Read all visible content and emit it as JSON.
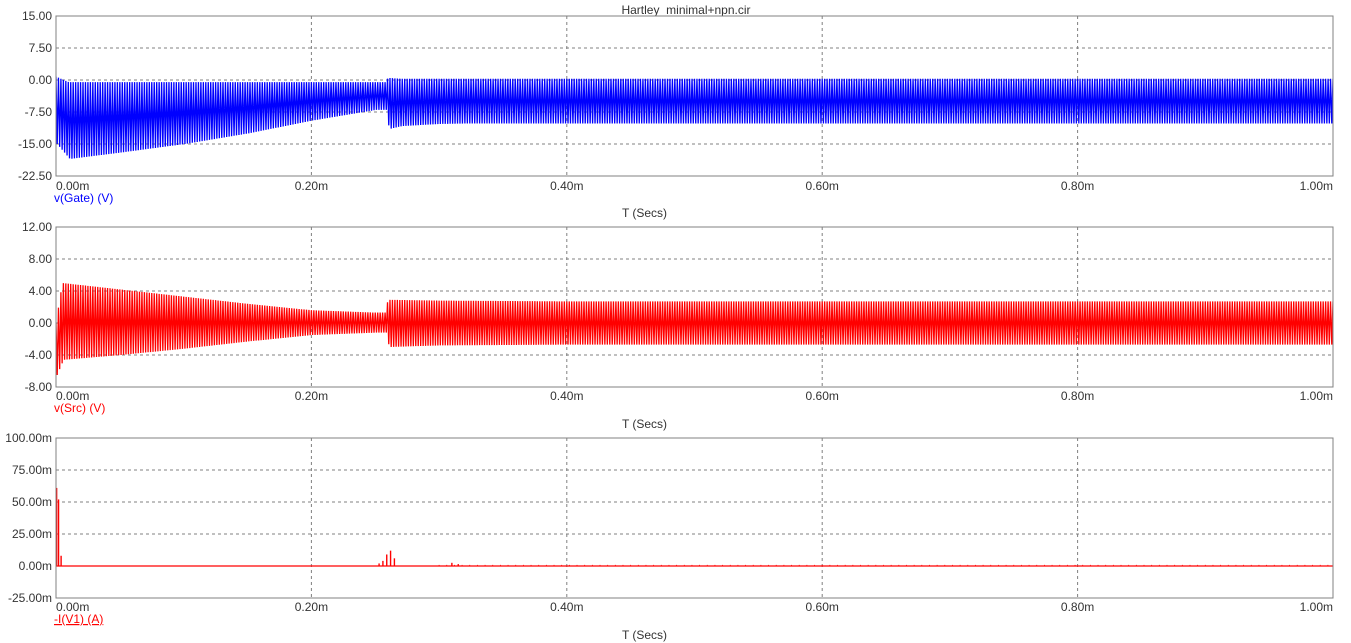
{
  "window": {
    "title": "Hartley_minimal+npn.cir"
  },
  "chart_data": [
    {
      "type": "line",
      "xlabel": "T (Secs)",
      "ylabel": "v(Gate) (V)",
      "xlim": [
        0,
        1.0
      ],
      "ylim": [
        -22.5,
        15.0
      ],
      "x_ticks": [
        "0.00m",
        "0.20m",
        "0.40m",
        "0.60m",
        "0.80m",
        "1.00m"
      ],
      "y_ticks": [
        "15.00",
        "7.50",
        "0.00",
        "-7.50",
        "-15.00",
        "-22.50"
      ],
      "grid": true,
      "color": "#0000ff",
      "series": [
        {
          "envelope_x": [
            0,
            0.01,
            0.05,
            0.1,
            0.15,
            0.2,
            0.25,
            0.258,
            0.26,
            0.27,
            0.3,
            0.32,
            0.4,
            0.6,
            0.8,
            1.0
          ],
          "upper": [
            0.8,
            -0.5,
            -0.5,
            -0.5,
            -0.5,
            -0.5,
            -0.5,
            -0.5,
            0.5,
            0.3,
            0.3,
            0.3,
            0.3,
            0.3,
            0.3,
            0.3
          ],
          "lower": [
            -15.0,
            -18.5,
            -17.0,
            -15.0,
            -12.5,
            -9.5,
            -7.0,
            -7.0,
            -11.5,
            -10.8,
            -10.3,
            -10.2,
            -10.2,
            -10.2,
            -10.2,
            -10.2
          ]
        }
      ]
    },
    {
      "type": "line",
      "xlabel": "T (Secs)",
      "ylabel": "v(Src) (V)",
      "xlim": [
        0,
        1.0
      ],
      "ylim": [
        -8.0,
        12.0
      ],
      "x_ticks": [
        "0.00m",
        "0.20m",
        "0.40m",
        "0.60m",
        "0.80m",
        "1.00m"
      ],
      "y_ticks": [
        "12.00",
        "8.00",
        "4.00",
        "0.00",
        "-4.00",
        "-8.00"
      ],
      "grid": true,
      "color": "#ff0000",
      "series": [
        {
          "envelope_x": [
            0,
            0.005,
            0.05,
            0.1,
            0.15,
            0.2,
            0.25,
            0.258,
            0.26,
            0.3,
            0.4,
            0.6,
            0.8,
            1.0
          ],
          "upper": [
            0,
            5.0,
            4.2,
            3.3,
            2.4,
            1.6,
            1.3,
            1.3,
            2.9,
            2.8,
            2.7,
            2.7,
            2.7,
            2.7
          ],
          "lower": [
            -6.5,
            -4.6,
            -4.0,
            -3.2,
            -2.3,
            -1.5,
            -1.2,
            -1.2,
            -3.0,
            -2.8,
            -2.7,
            -2.7,
            -2.7,
            -2.7
          ]
        }
      ]
    },
    {
      "type": "line",
      "xlabel": "T (Secs)",
      "ylabel": "-I(V1) (A)",
      "xlim": [
        0,
        1.0
      ],
      "ylim": [
        -25.0,
        100.0
      ],
      "y_unit_suffix": "m",
      "x_ticks": [
        "0.00m",
        "0.20m",
        "0.40m",
        "0.60m",
        "0.80m",
        "1.00m"
      ],
      "y_ticks": [
        "100.00m",
        "75.00m",
        "50.00m",
        "25.00m",
        "0.00m",
        "-25.00m"
      ],
      "grid": true,
      "color": "#ff0000",
      "series": [
        {
          "spikes": [
            {
              "x": 0.0005,
              "y": 61
            },
            {
              "x": 0.002,
              "y": 52
            },
            {
              "x": 0.004,
              "y": 8
            },
            {
              "x": 0.253,
              "y": 2
            },
            {
              "x": 0.256,
              "y": 4
            },
            {
              "x": 0.259,
              "y": 9
            },
            {
              "x": 0.262,
              "y": 12
            },
            {
              "x": 0.265,
              "y": 6
            },
            {
              "x": 0.31,
              "y": 2.5
            },
            {
              "x": 0.315,
              "y": 1.5
            }
          ],
          "baseline": 0
        }
      ]
    }
  ]
}
